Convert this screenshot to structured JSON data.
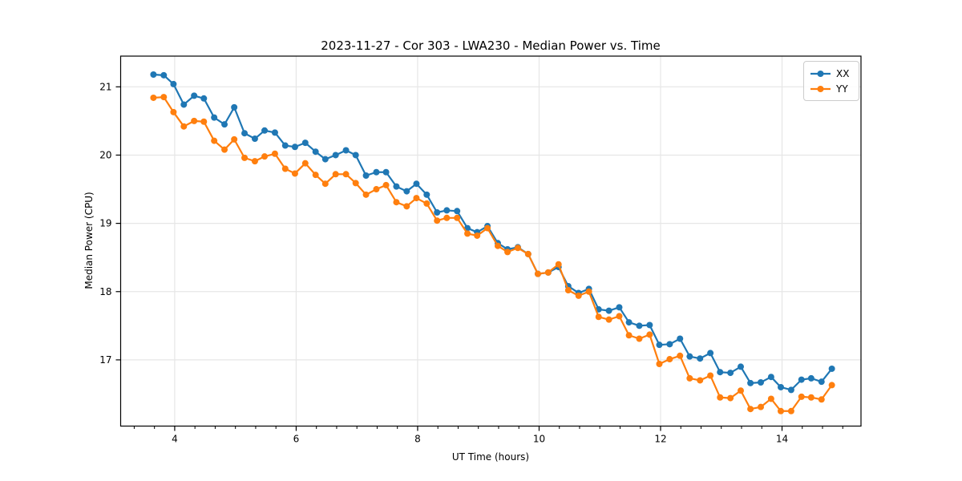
{
  "chart_data": {
    "type": "line",
    "title": "2023-11-27 - Cor 303 - LWA230 - Median Power vs. Time",
    "xlabel": "UT Time (hours)",
    "ylabel": "Median Power (CPU)",
    "xlim": [
      3.11,
      15.3
    ],
    "ylim": [
      16.03,
      21.45
    ],
    "xticks": [
      4,
      6,
      8,
      10,
      12,
      14
    ],
    "yticks": [
      17,
      18,
      19,
      20,
      21
    ],
    "x_minor_tick_step": 0.33333,
    "grid": true,
    "grid_color": "#e6e6e6",
    "legend_position": "upper right",
    "x": [
      3.65,
      3.82,
      3.98,
      4.15,
      4.32,
      4.48,
      4.65,
      4.82,
      4.98,
      5.15,
      5.32,
      5.48,
      5.65,
      5.82,
      5.98,
      6.15,
      6.32,
      6.48,
      6.65,
      6.82,
      6.98,
      7.15,
      7.32,
      7.48,
      7.65,
      7.82,
      7.98,
      8.15,
      8.32,
      8.48,
      8.65,
      8.82,
      8.98,
      9.15,
      9.32,
      9.48,
      9.65,
      9.82,
      9.98,
      10.15,
      10.32,
      10.48,
      10.65,
      10.82,
      10.98,
      11.15,
      11.32,
      11.48,
      11.65,
      11.82,
      11.98,
      12.15,
      12.32,
      12.48,
      12.65,
      12.82,
      12.98,
      13.15,
      13.32,
      13.48,
      13.65,
      13.82,
      13.98,
      14.15,
      14.32,
      14.48,
      14.65,
      14.82
    ],
    "series": [
      {
        "name": "XX",
        "color": "#1f77b4",
        "marker": "circle",
        "values": [
          21.18,
          21.17,
          21.04,
          20.74,
          20.87,
          20.83,
          20.55,
          20.45,
          20.7,
          20.32,
          20.24,
          20.36,
          20.33,
          20.14,
          20.12,
          20.18,
          20.05,
          19.94,
          20.0,
          20.07,
          20.0,
          19.7,
          19.75,
          19.75,
          19.54,
          19.47,
          19.58,
          19.42,
          19.16,
          19.19,
          19.18,
          18.93,
          18.87,
          18.96,
          18.71,
          18.62,
          18.65,
          18.55,
          18.26,
          18.28,
          18.36,
          18.08,
          17.98,
          18.04,
          17.74,
          17.72,
          17.77,
          17.55,
          17.5,
          17.51,
          17.22,
          17.23,
          17.31,
          17.05,
          17.02,
          17.1,
          16.82,
          16.81,
          16.9,
          16.66,
          16.67,
          16.75,
          16.6,
          16.56,
          16.71,
          16.73,
          16.68,
          16.87
        ]
      },
      {
        "name": "YY",
        "color": "#ff7f0e",
        "marker": "circle",
        "values": [
          20.84,
          20.85,
          20.63,
          20.42,
          20.5,
          20.49,
          20.21,
          20.08,
          20.23,
          19.96,
          19.91,
          19.98,
          20.02,
          19.8,
          19.73,
          19.88,
          19.71,
          19.58,
          19.72,
          19.72,
          19.59,
          19.42,
          19.5,
          19.56,
          19.31,
          19.25,
          19.37,
          19.29,
          19.04,
          19.08,
          19.08,
          18.85,
          18.82,
          18.93,
          18.67,
          18.58,
          18.64,
          18.55,
          18.26,
          18.28,
          18.4,
          18.02,
          17.94,
          18.0,
          17.63,
          17.59,
          17.64,
          17.36,
          17.31,
          17.37,
          16.94,
          17.01,
          17.06,
          16.73,
          16.7,
          16.77,
          16.45,
          16.44,
          16.55,
          16.28,
          16.31,
          16.43,
          16.25,
          16.25,
          16.46,
          16.45,
          16.42,
          16.63
        ]
      }
    ]
  }
}
